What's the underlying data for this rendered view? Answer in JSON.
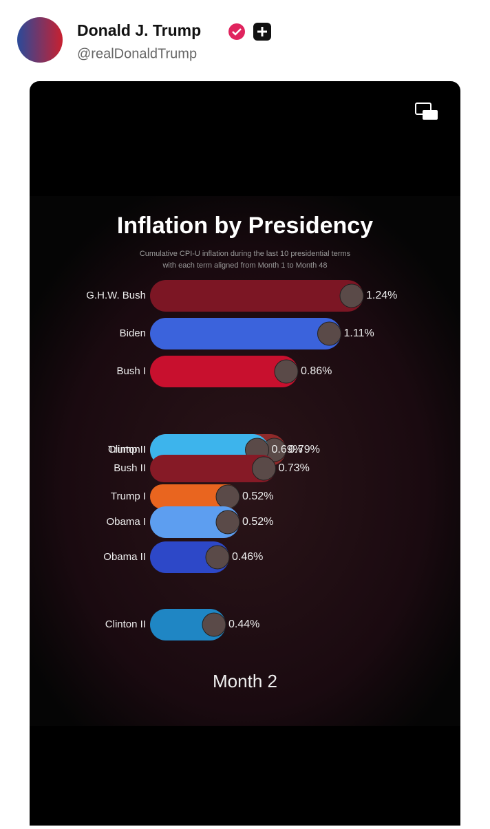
{
  "header": {
    "name": "Donald J. Trump",
    "handle": "@realDonaldTrump"
  },
  "chart_data": {
    "type": "bar",
    "title": "Inflation by Presidency",
    "subtitle": [
      "Cumulative CPI-U inflation during the last 10 presidential terms",
      "with each term aligned from Month 1 to Month 48"
    ],
    "annotation": "Month 2",
    "categories": [
      "G.H.W. Bush",
      "Biden",
      "Bush I",
      "Trump II",
      "Clinton I",
      "Bush II",
      "Trump I",
      "Obama I",
      "Obama II",
      "Clinton II"
    ],
    "series": [
      {
        "values": [
          1.24,
          1.11,
          0.86,
          0.79,
          0.69,
          0.73,
          0.52,
          0.52,
          0.46,
          0.44
        ],
        "value_labels": [
          "1.24%",
          "1.11%",
          "0.86%",
          "0.79%",
          "0.69%",
          "0.73%",
          "0.52%",
          "0.52%",
          "0.46%",
          "0.44%"
        ],
        "colors": [
          "#7c1624",
          "#3b63dc",
          "#c8102e",
          "#8f2a2a",
          "#3db4ec",
          "#861a26",
          "#e9651f",
          "#5d9ef0",
          "#2d48c8",
          "#1f86c4"
        ]
      }
    ]
  }
}
